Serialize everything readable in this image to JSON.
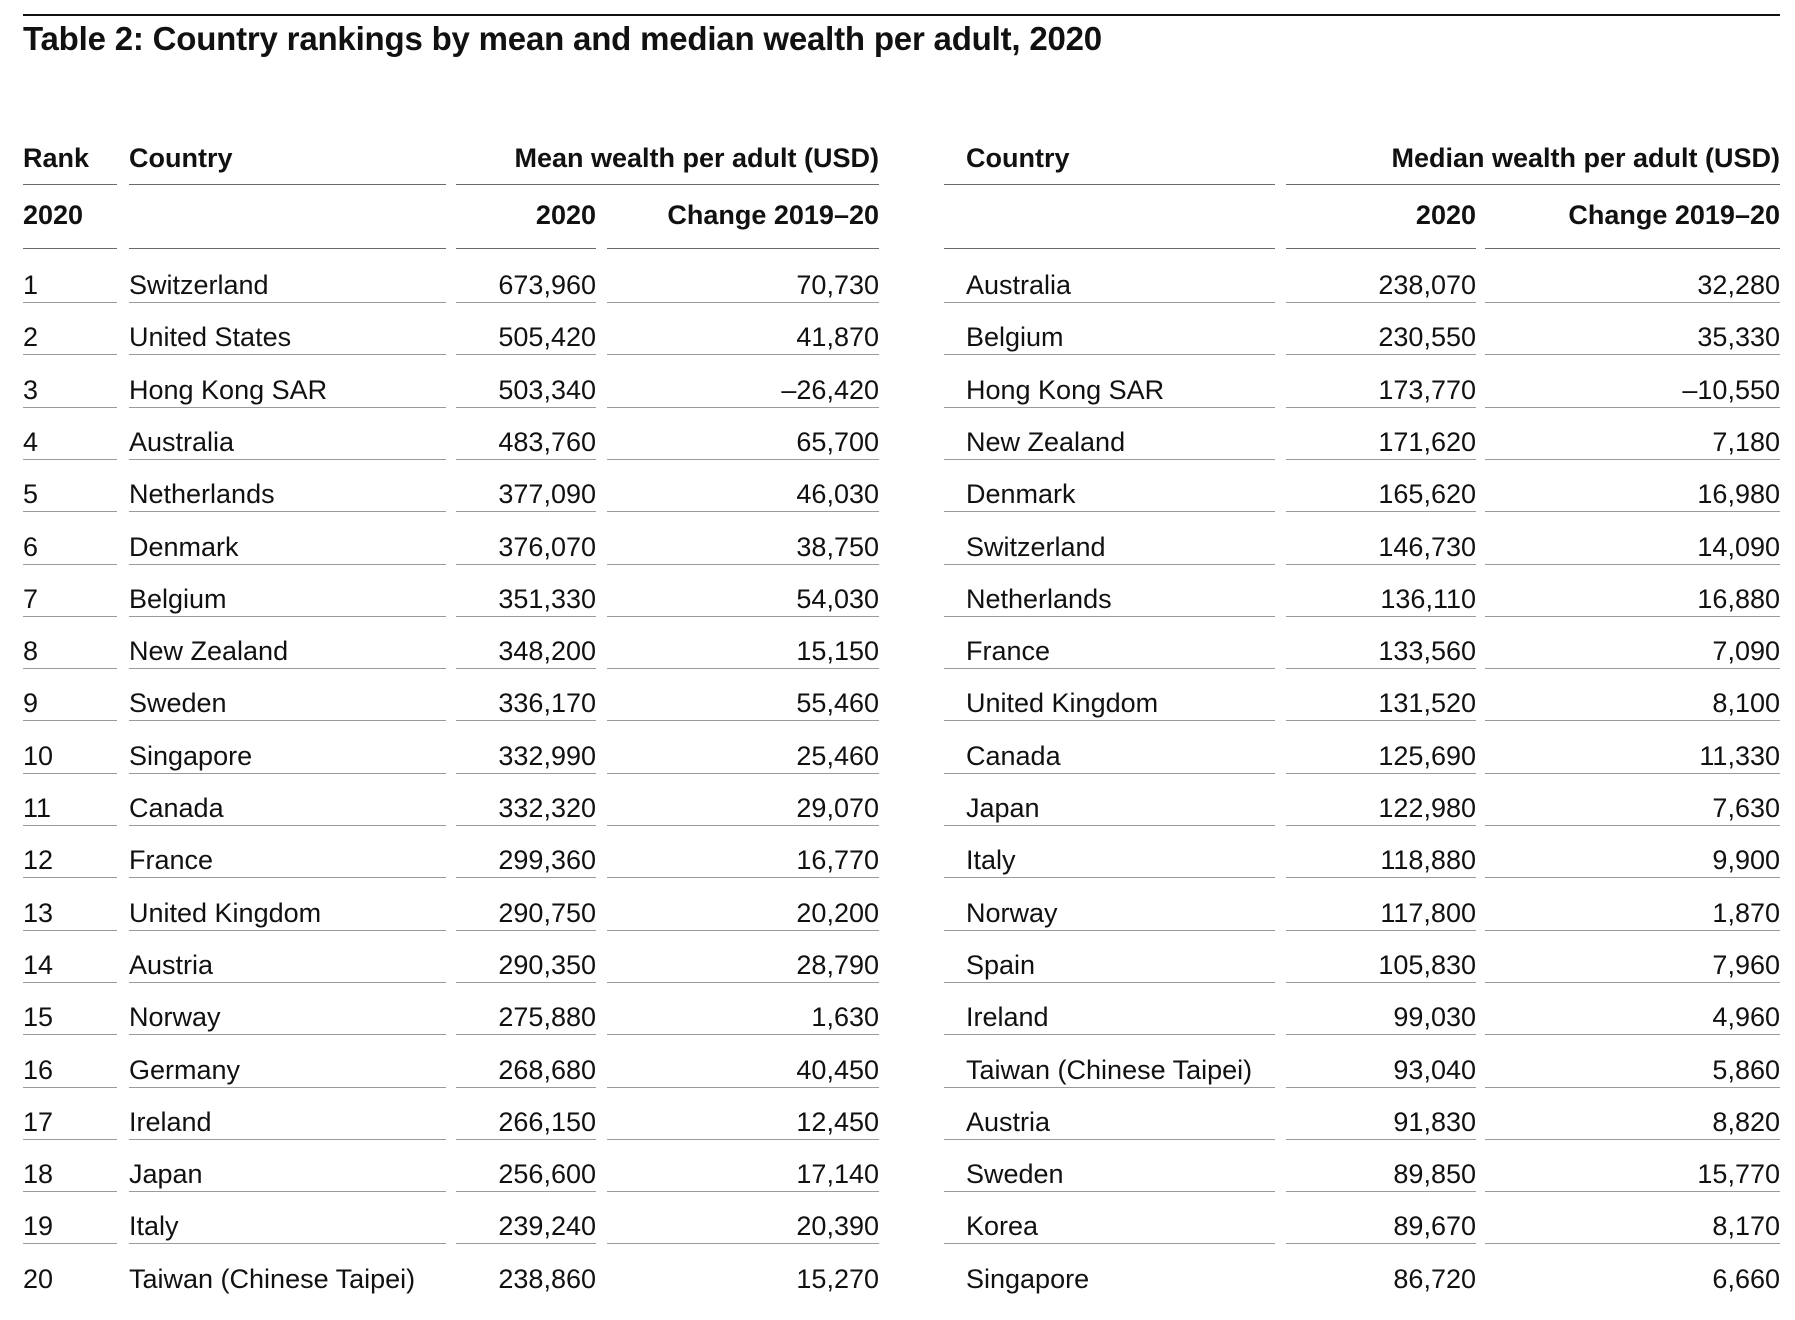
{
  "title": "Table 2: Country rankings by mean and median wealth per adult, 2020",
  "headers": {
    "rank": "Rank",
    "rank_year": "2020",
    "country_left": "Country",
    "mean_group": "Mean wealth per adult (USD)",
    "mean_year": "2020",
    "mean_change": "Change 2019–20",
    "country_right": "Country",
    "median_group": "Median wealth per adult (USD)",
    "median_year": "2020",
    "median_change": "Change 2019–20"
  },
  "rows": [
    {
      "rank": "1",
      "mean_country": "Switzerland",
      "mean": "673,960",
      "mean_change": "70,730",
      "median_country": "Australia",
      "median": "238,070",
      "median_change": "32,280"
    },
    {
      "rank": "2",
      "mean_country": "United States",
      "mean": "505,420",
      "mean_change": "41,870",
      "median_country": "Belgium",
      "median": "230,550",
      "median_change": "35,330"
    },
    {
      "rank": "3",
      "mean_country": "Hong Kong SAR",
      "mean": "503,340",
      "mean_change": "–26,420",
      "median_country": "Hong Kong SAR",
      "median": "173,770",
      "median_change": "–10,550"
    },
    {
      "rank": "4",
      "mean_country": "Australia",
      "mean": "483,760",
      "mean_change": "65,700",
      "median_country": "New Zealand",
      "median": "171,620",
      "median_change": "7,180"
    },
    {
      "rank": "5",
      "mean_country": "Netherlands",
      "mean": "377,090",
      "mean_change": "46,030",
      "median_country": "Denmark",
      "median": "165,620",
      "median_change": "16,980"
    },
    {
      "rank": "6",
      "mean_country": "Denmark",
      "mean": "376,070",
      "mean_change": "38,750",
      "median_country": "Switzerland",
      "median": "146,730",
      "median_change": "14,090"
    },
    {
      "rank": "7",
      "mean_country": "Belgium",
      "mean": "351,330",
      "mean_change": "54,030",
      "median_country": "Netherlands",
      "median": "136,110",
      "median_change": "16,880"
    },
    {
      "rank": "8",
      "mean_country": "New Zealand",
      "mean": "348,200",
      "mean_change": "15,150",
      "median_country": "France",
      "median": "133,560",
      "median_change": "7,090"
    },
    {
      "rank": "9",
      "mean_country": "Sweden",
      "mean": "336,170",
      "mean_change": "55,460",
      "median_country": "United Kingdom",
      "median": "131,520",
      "median_change": "8,100"
    },
    {
      "rank": "10",
      "mean_country": "Singapore",
      "mean": "332,990",
      "mean_change": "25,460",
      "median_country": "Canada",
      "median": "125,690",
      "median_change": "11,330"
    },
    {
      "rank": "11",
      "mean_country": "Canada",
      "mean": "332,320",
      "mean_change": "29,070",
      "median_country": "Japan",
      "median": "122,980",
      "median_change": "7,630"
    },
    {
      "rank": "12",
      "mean_country": "France",
      "mean": "299,360",
      "mean_change": "16,770",
      "median_country": "Italy",
      "median": "118,880",
      "median_change": "9,900"
    },
    {
      "rank": "13",
      "mean_country": "United Kingdom",
      "mean": "290,750",
      "mean_change": "20,200",
      "median_country": "Norway",
      "median": "117,800",
      "median_change": "1,870"
    },
    {
      "rank": "14",
      "mean_country": "Austria",
      "mean": "290,350",
      "mean_change": "28,790",
      "median_country": "Spain",
      "median": "105,830",
      "median_change": "7,960"
    },
    {
      "rank": "15",
      "mean_country": "Norway",
      "mean": "275,880",
      "mean_change": "1,630",
      "median_country": "Ireland",
      "median": "99,030",
      "median_change": "4,960"
    },
    {
      "rank": "16",
      "mean_country": "Germany",
      "mean": "268,680",
      "mean_change": "40,450",
      "median_country": "Taiwan (Chinese Taipei)",
      "median": "93,040",
      "median_change": "5,860"
    },
    {
      "rank": "17",
      "mean_country": "Ireland",
      "mean": "266,150",
      "mean_change": "12,450",
      "median_country": "Austria",
      "median": "91,830",
      "median_change": "8,820"
    },
    {
      "rank": "18",
      "mean_country": "Japan",
      "mean": "256,600",
      "mean_change": "17,140",
      "median_country": "Sweden",
      "median": "89,850",
      "median_change": "15,770"
    },
    {
      "rank": "19",
      "mean_country": "Italy",
      "mean": "239,240",
      "mean_change": "20,390",
      "median_country": "Korea",
      "median": "89,670",
      "median_change": "8,170"
    },
    {
      "rank": "20",
      "mean_country": "Taiwan (Chinese Taipei)",
      "mean": "238,860",
      "mean_change": "15,270",
      "median_country": "Singapore",
      "median": "86,720",
      "median_change": "6,660"
    }
  ]
}
